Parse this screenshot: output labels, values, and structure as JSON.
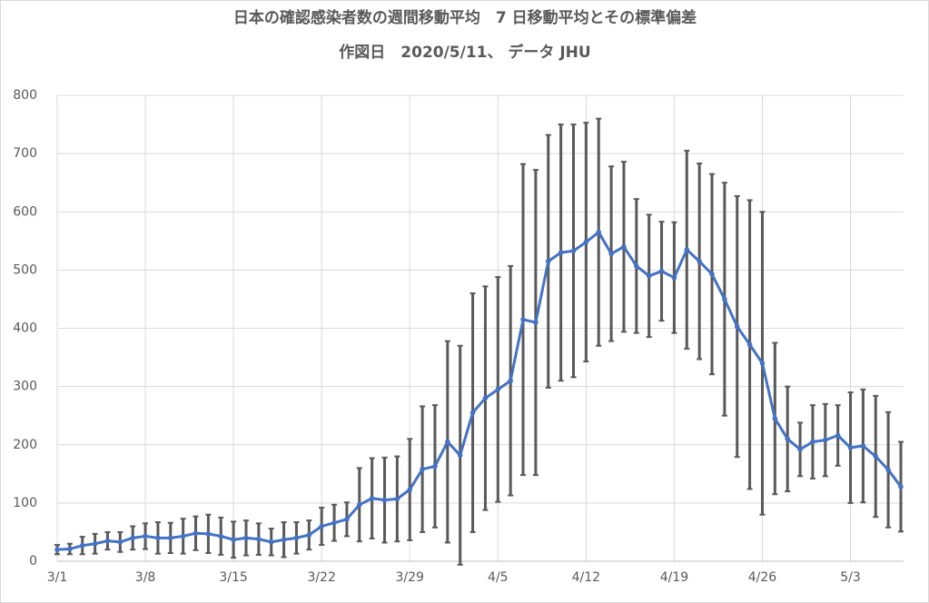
{
  "chart_data": {
    "type": "line",
    "title": "日本の確認感染者数の週間移動平均　7 日移動平均とその標準偏差",
    "subtitle": "作図日　2020/5/11、 データ JHU",
    "categories": [
      "3/1",
      null,
      null,
      null,
      null,
      null,
      null,
      "3/8",
      null,
      null,
      null,
      null,
      null,
      null,
      "3/15",
      null,
      null,
      null,
      null,
      null,
      null,
      "3/22",
      null,
      null,
      null,
      null,
      null,
      null,
      "3/29",
      null,
      null,
      null,
      null,
      null,
      null,
      "4/5",
      null,
      null,
      null,
      null,
      null,
      null,
      "4/12",
      null,
      null,
      null,
      null,
      null,
      null,
      "4/19",
      null,
      null,
      null,
      null,
      null,
      null,
      "4/26",
      null,
      null,
      null,
      null,
      null,
      null,
      "5/3",
      null,
      null,
      null,
      null
    ],
    "series": [
      {
        "color": "#4472c4",
        "error_color": "#595959",
        "values": [
          20,
          21,
          27,
          30,
          35,
          33,
          40,
          43,
          40,
          40,
          43,
          48,
          47,
          43,
          37,
          40,
          38,
          33,
          37,
          40,
          45,
          60,
          66,
          72,
          97,
          108,
          105,
          107,
          123,
          158,
          163,
          205,
          182,
          255,
          280,
          295,
          310,
          415,
          410,
          515,
          530,
          533,
          548,
          565,
          528,
          540,
          507,
          490,
          498,
          487,
          535,
          515,
          493,
          450,
          403,
          372,
          340,
          245,
          210,
          192,
          205,
          208,
          216,
          195,
          198,
          180,
          157,
          128
        ],
        "errors": [
          8,
          9,
          15,
          17,
          15,
          17,
          20,
          22,
          27,
          26,
          30,
          29,
          33,
          32,
          31,
          30,
          27,
          23,
          30,
          27,
          25,
          32,
          31,
          29,
          63,
          69,
          73,
          73,
          87,
          108,
          105,
          173,
          188,
          205,
          192,
          193,
          197,
          267,
          262,
          217,
          220,
          217,
          205,
          195,
          150,
          146,
          115,
          105,
          85,
          95,
          170,
          168,
          172,
          200,
          224,
          248,
          260,
          130,
          90,
          46,
          63,
          62,
          52,
          95,
          97,
          104,
          99,
          77
        ]
      }
    ],
    "ylim": [
      0,
      800
    ],
    "yticks": [
      0,
      100,
      200,
      300,
      400,
      500,
      600,
      700,
      800
    ],
    "grid": true
  }
}
